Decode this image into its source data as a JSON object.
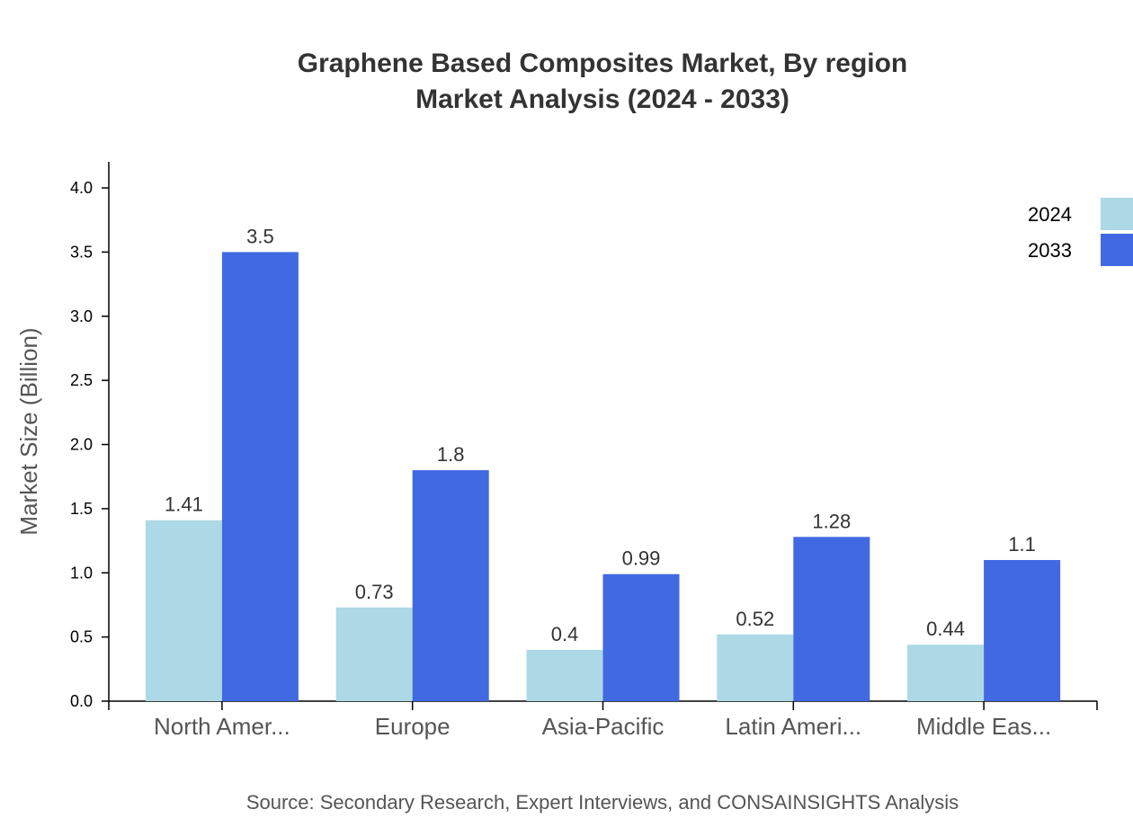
{
  "chart_data": {
    "type": "bar",
    "title": "Graphene Based Composites Market, By region",
    "subtitle": "Market Analysis (2024 - 2033)",
    "y_label": "Market Size (Billion)",
    "source": "Source: Secondary Research, Expert Interviews, and CONSAINSIGHTS Analysis",
    "categories": [
      "North Amer...",
      "Europe",
      "Asia-Pacific",
      "Latin Ameri...",
      "Middle Eas..."
    ],
    "series": [
      {
        "name": "2024",
        "color": "#add8e6",
        "values": [
          1.41,
          0.73,
          0.4,
          0.52,
          0.44
        ]
      },
      {
        "name": "2033",
        "color": "#4169e1",
        "values": [
          3.5,
          1.8,
          0.99,
          1.28,
          1.1
        ]
      }
    ],
    "ylim": [
      0,
      4.2
    ],
    "yticks": [
      {
        "value": 0,
        "label": "0.0"
      },
      0.5,
      {
        "value": 1,
        "label": "1.0"
      },
      1.5,
      {
        "value": 2,
        "label": "2.0"
      },
      2.5,
      {
        "value": 3,
        "label": "3.0"
      },
      3.5,
      {
        "value": 4,
        "label": "4.0"
      }
    ],
    "legend": "top-right"
  }
}
